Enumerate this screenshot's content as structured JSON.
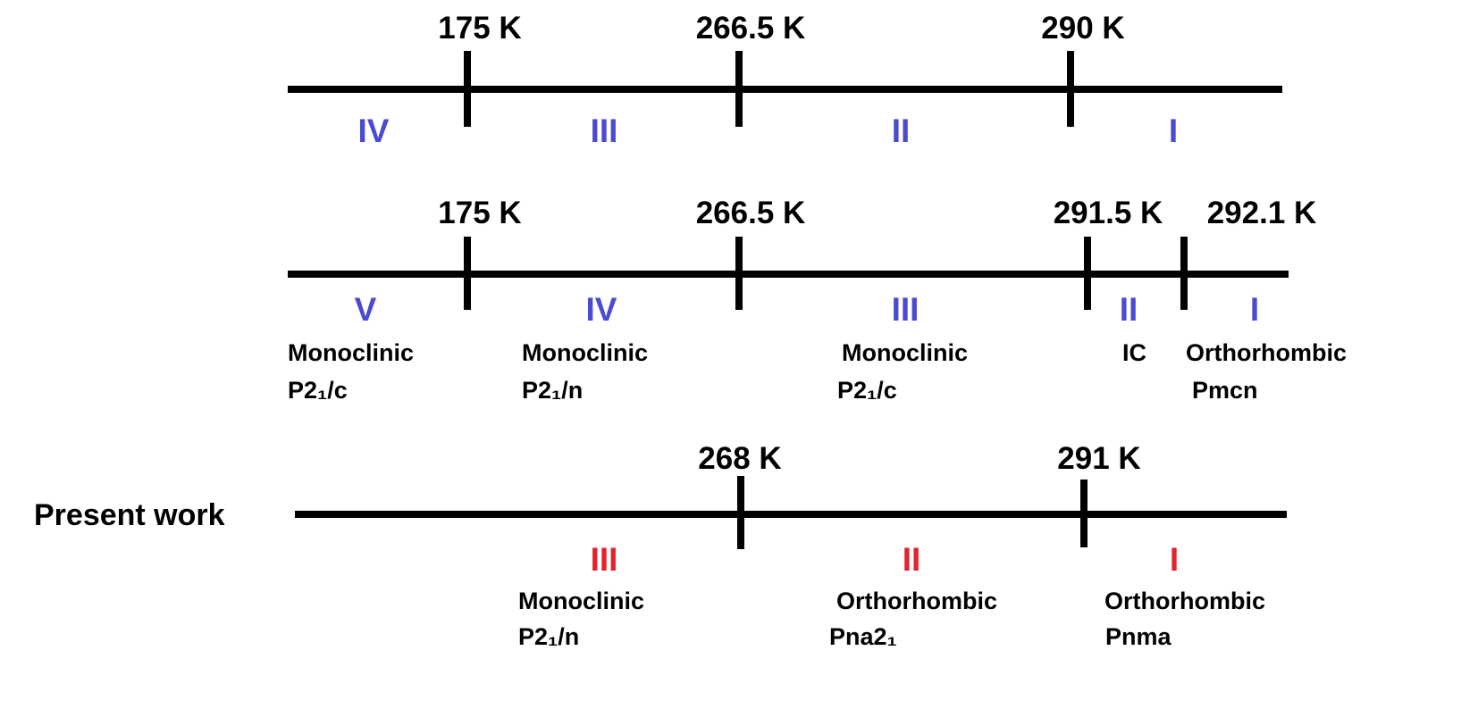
{
  "colors": {
    "phase_blue": "#4b4bd2",
    "phase_red": "#e3222c",
    "line": "#000000"
  },
  "rows": [
    {
      "label": "",
      "transitions": [
        "175 K",
        "266.5 K",
        "290 K"
      ],
      "phases": [
        {
          "numeral": "IV",
          "system": "",
          "space_group": ""
        },
        {
          "numeral": "III",
          "system": "",
          "space_group": ""
        },
        {
          "numeral": "II",
          "system": "",
          "space_group": ""
        },
        {
          "numeral": "I",
          "system": "",
          "space_group": ""
        }
      ]
    },
    {
      "label": "",
      "transitions": [
        "175 K",
        "266.5 K",
        "291.5 K",
        "292.1 K"
      ],
      "phases": [
        {
          "numeral": "V",
          "system": "Monoclinic",
          "space_group": "P2₁/c"
        },
        {
          "numeral": "IV",
          "system": "Monoclinic",
          "space_group": "P2₁/n"
        },
        {
          "numeral": "III",
          "system": "Monoclinic",
          "space_group": "P2₁/c"
        },
        {
          "numeral": "II",
          "system": "IC",
          "space_group": ""
        },
        {
          "numeral": "I",
          "system": "Orthorhombic",
          "space_group": "Pmcn"
        }
      ]
    },
    {
      "label": "Present work",
      "transitions": [
        "268 K",
        "291 K"
      ],
      "phases": [
        {
          "numeral": "III",
          "system": "Monoclinic",
          "space_group": "P2₁/n"
        },
        {
          "numeral": "II",
          "system": "Orthorhombic",
          "space_group": "Pna2₁"
        },
        {
          "numeral": "I",
          "system": "Orthorhombic",
          "space_group": "Pnma"
        }
      ]
    }
  ]
}
